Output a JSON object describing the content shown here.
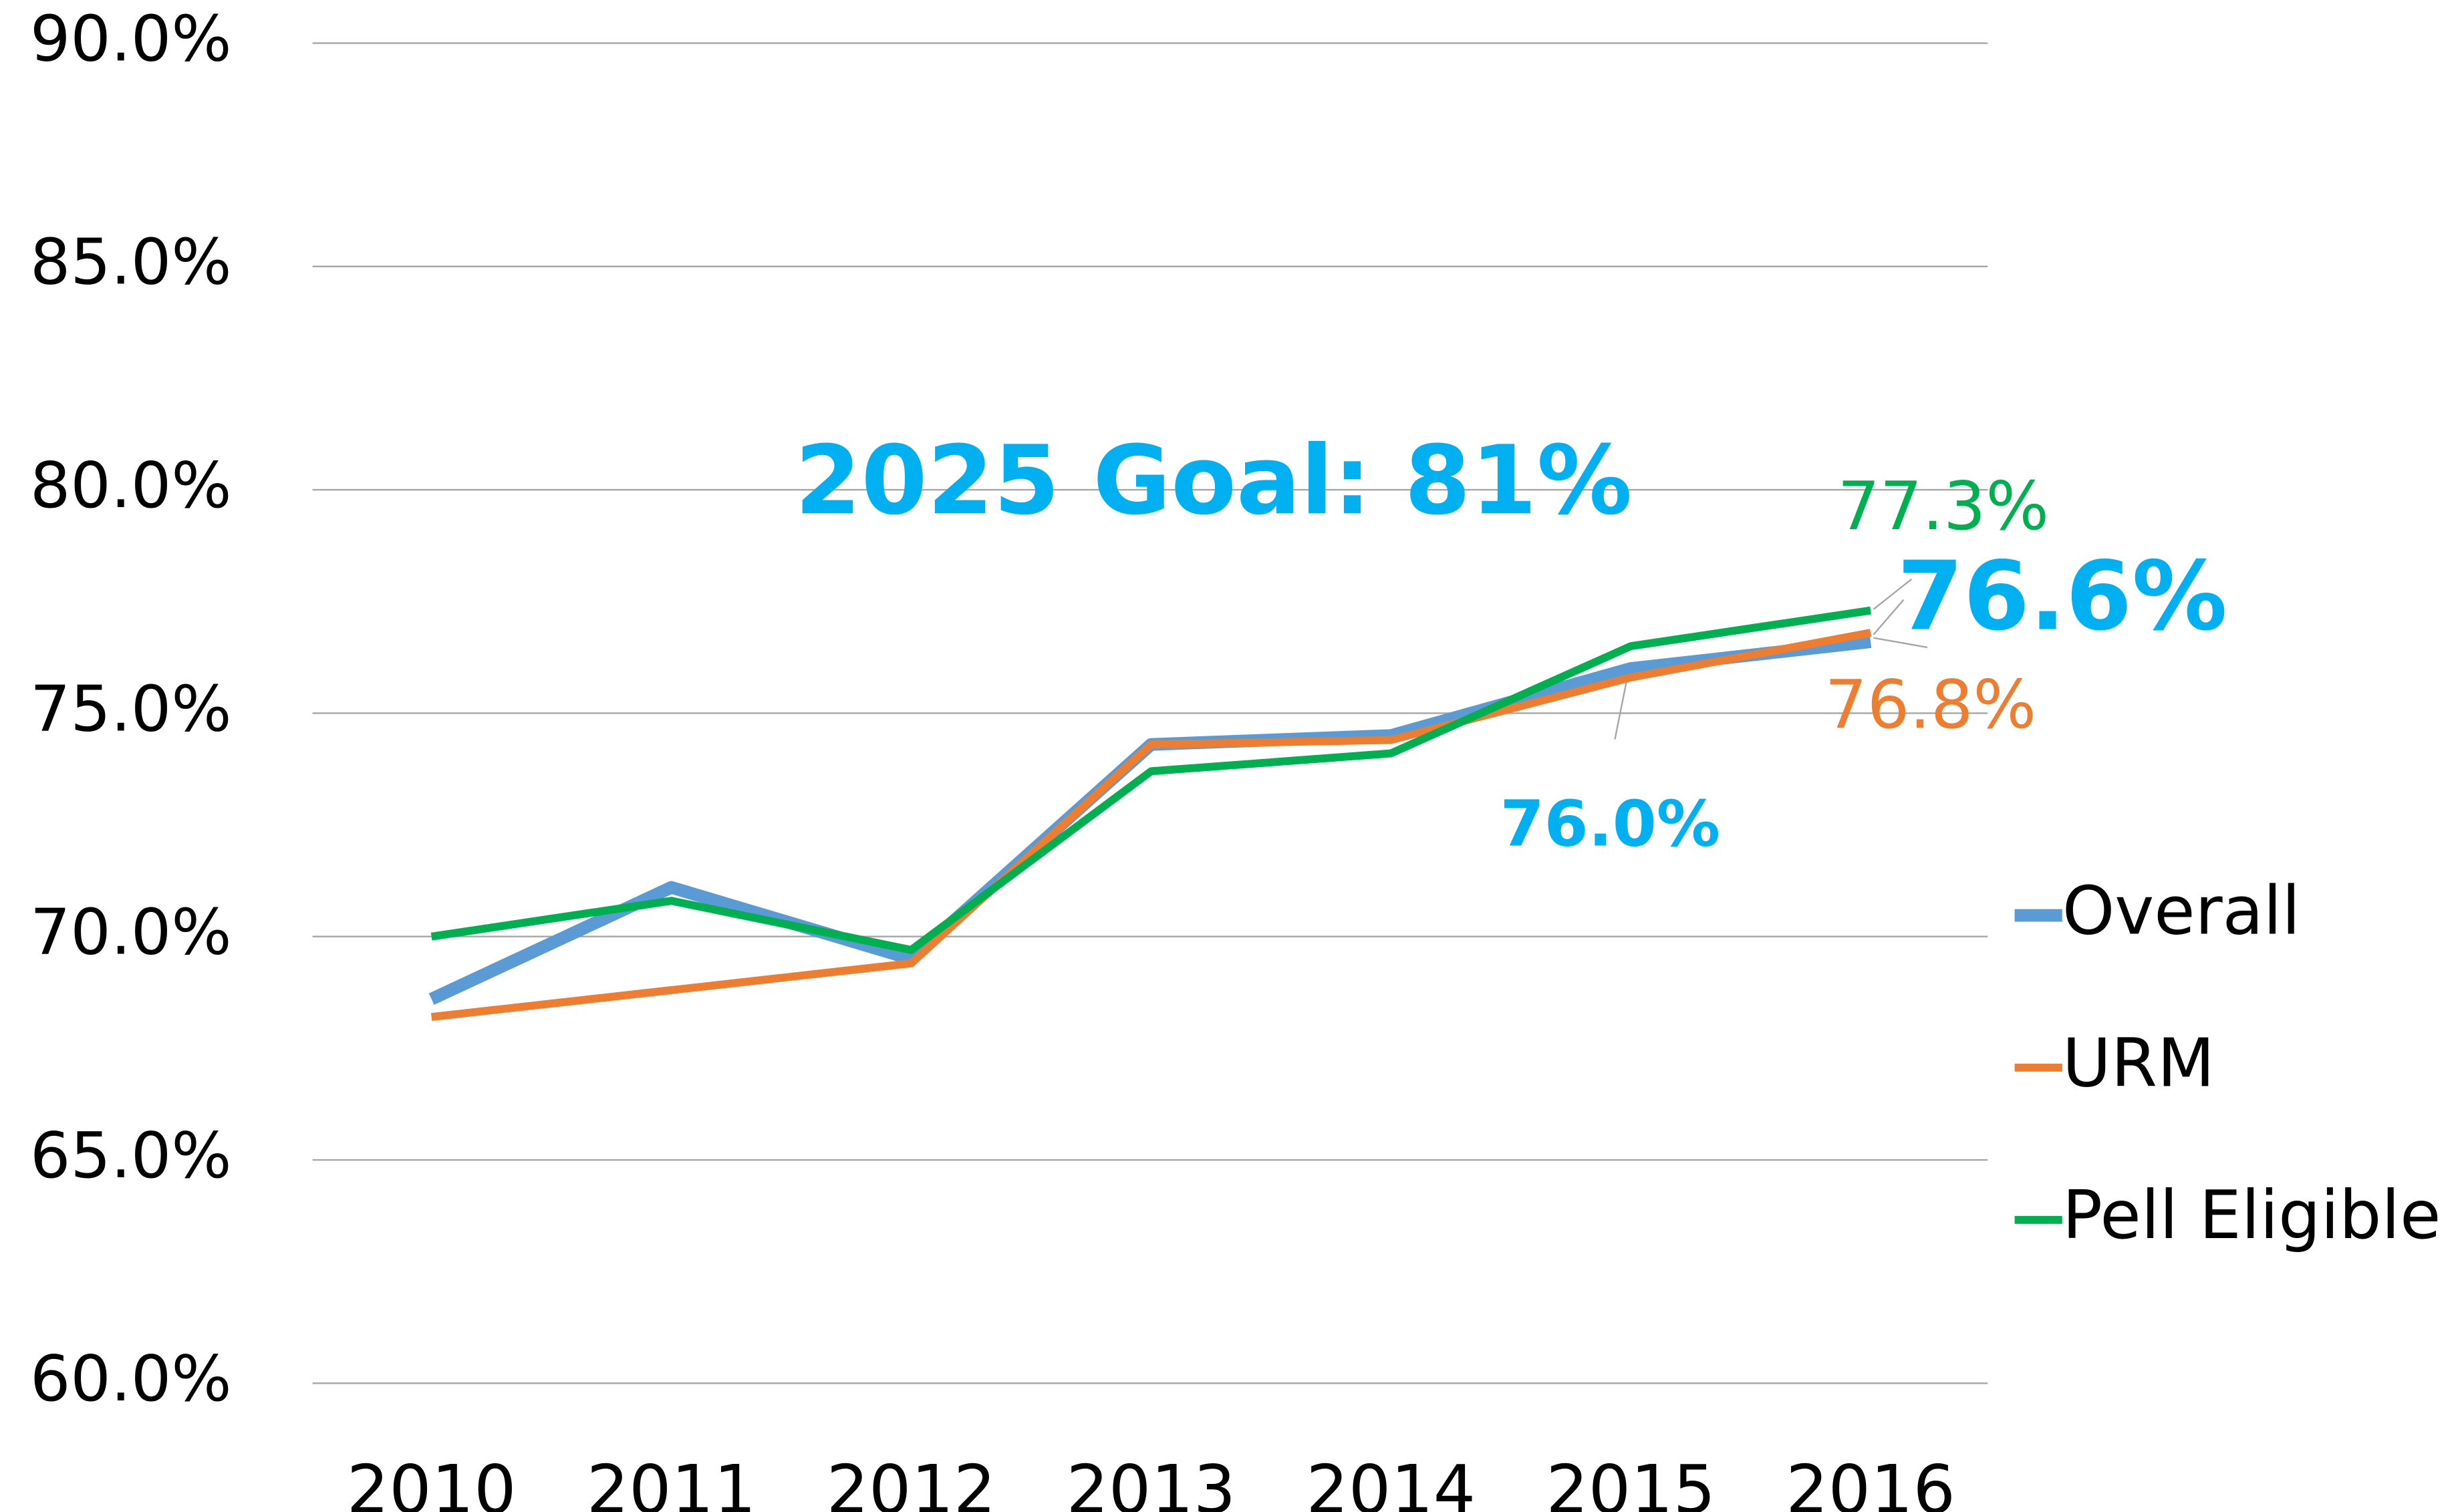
{
  "chart_data": {
    "type": "line",
    "annotations": [
      {
        "text": "2025 Goal: 81%",
        "color": "#00b0f0"
      }
    ],
    "categories": [
      "2010",
      "2011",
      "2012",
      "2013",
      "2014",
      "2015",
      "2016"
    ],
    "series": [
      {
        "name": "Overall",
        "color": "#5b9bd5",
        "label_color": "#00b0f0",
        "values": [
          68.6,
          71.1,
          69.5,
          74.3,
          74.5,
          76.0,
          76.6
        ],
        "value_labels": [
          null,
          null,
          null,
          null,
          null,
          "76.0%",
          "76.6%"
        ]
      },
      {
        "name": "URM",
        "color": "#ed7d31",
        "label_color": "#ed7d31",
        "values": [
          68.2,
          68.8,
          69.4,
          74.3,
          74.4,
          75.8,
          76.8
        ],
        "value_labels": [
          null,
          null,
          null,
          null,
          null,
          null,
          "76.8%"
        ]
      },
      {
        "name": "Pell Eligible",
        "color": "#00b050",
        "label_color": "#00b050",
        "values": [
          70.0,
          70.8,
          69.7,
          73.7,
          74.1,
          76.5,
          77.3
        ],
        "value_labels": [
          null,
          null,
          null,
          null,
          null,
          null,
          "77.3%"
        ]
      }
    ],
    "ylim": [
      60,
      90
    ],
    "yticks": [
      {
        "value": 60,
        "label": "60.0%"
      },
      {
        "value": 65,
        "label": "65.0%"
      },
      {
        "value": 70,
        "label": "70.0%"
      },
      {
        "value": 75,
        "label": "75.0%"
      },
      {
        "value": 80,
        "label": "80.0%"
      },
      {
        "value": 85,
        "label": "85.0%"
      },
      {
        "value": 90,
        "label": "90.0%"
      }
    ],
    "grid": true,
    "legend": "right"
  }
}
